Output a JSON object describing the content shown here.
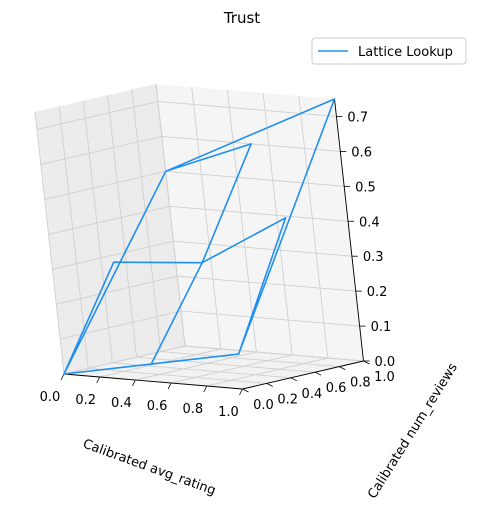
{
  "chart_data": {
    "type": "line",
    "projection": "3d",
    "title": "Trust",
    "xlabel": "Calibrated avg_rating",
    "ylabel": "Calibrated num_reviews",
    "zlabel": "",
    "xlim": [
      0,
      1
    ],
    "ylim": [
      0,
      1
    ],
    "zlim": [
      0,
      0.75
    ],
    "xticks": [
      "0.0",
      "0.2",
      "0.4",
      "0.6",
      "0.8",
      "1.0"
    ],
    "yticks": [
      "0.0",
      "0.2",
      "0.4",
      "0.6",
      "0.8",
      "1.0"
    ],
    "zticks": [
      "0.0",
      "0.1",
      "0.2",
      "0.3",
      "0.4",
      "0.5",
      "0.6",
      "0.7"
    ],
    "grid": true,
    "legend_position": "top-right",
    "series": [
      {
        "name": "Lattice Lookup",
        "color": "#1f8ff0",
        "points": [
          {
            "x": 0.0,
            "y": 0.0,
            "z": 0.0
          },
          {
            "x": 1.0,
            "y": 0.0,
            "z": 0.1
          },
          {
            "x": 1.0,
            "y": 1.0,
            "z": 0.75
          },
          {
            "x": 0.0,
            "y": 1.0,
            "z": 0.5
          },
          {
            "x": 0.0,
            "y": 0.0,
            "z": 0.0
          },
          {
            "x": 0.0,
            "y": 0.5,
            "z": 0.28
          },
          {
            "x": 0.5,
            "y": 0.5,
            "z": 0.3
          },
          {
            "x": 1.0,
            "y": 0.5,
            "z": 0.45
          },
          {
            "x": 1.0,
            "y": 0.0,
            "z": 0.1
          },
          {
            "x": 0.5,
            "y": 0.0,
            "z": 0.05
          },
          {
            "x": 0.5,
            "y": 0.5,
            "z": 0.3
          },
          {
            "x": 0.5,
            "y": 1.0,
            "z": 0.6
          },
          {
            "x": 0.0,
            "y": 1.0,
            "z": 0.5
          }
        ]
      }
    ]
  }
}
